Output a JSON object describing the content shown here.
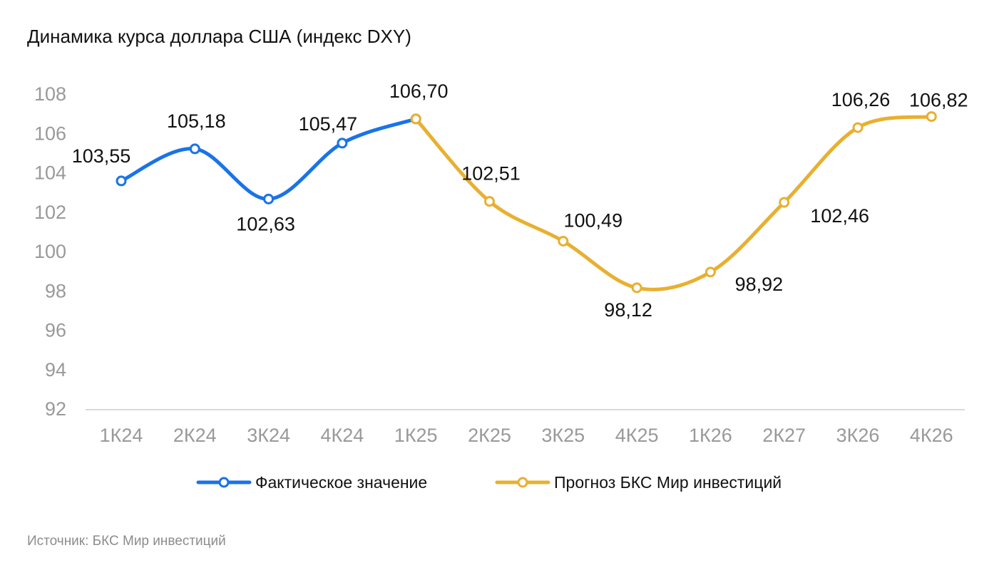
{
  "chart_data": {
    "type": "line",
    "title": "Динамика курса доллара США (индекс DXY)",
    "categories": [
      "1К24",
      "2К24",
      "3К24",
      "4К24",
      "1К25",
      "2К25",
      "3К25",
      "4К25",
      "1К26",
      "2К27",
      "3К26",
      "4К26"
    ],
    "ylim": [
      92,
      108
    ],
    "yticks": [
      92,
      94,
      96,
      98,
      100,
      102,
      104,
      106,
      108
    ],
    "grid": false,
    "legend_position": "bottom",
    "series": [
      {
        "name": "Фактическое значение",
        "color": "#1a73e8",
        "values": [
          103.55,
          105.18,
          102.63,
          105.47,
          106.7,
          null,
          null,
          null,
          null,
          null,
          null,
          null
        ],
        "labels": [
          "103,55",
          "105,18",
          "102,63",
          "105,47",
          "106,70",
          "",
          "",
          "",
          "",
          "",
          "",
          ""
        ]
      },
      {
        "name": "Прогноз БКС Мир инвестиций",
        "color": "#e8b030",
        "values": [
          null,
          null,
          null,
          null,
          106.7,
          102.51,
          100.49,
          98.12,
          98.92,
          102.46,
          106.26,
          106.82
        ],
        "labels": [
          "",
          "",
          "",
          "",
          "",
          "102,51",
          "100,49",
          "98,12",
          "98,92",
          "102,46",
          "106,26",
          "106,82"
        ]
      }
    ]
  },
  "footer": {
    "source": "Источник: БКС Мир инвестиций"
  }
}
